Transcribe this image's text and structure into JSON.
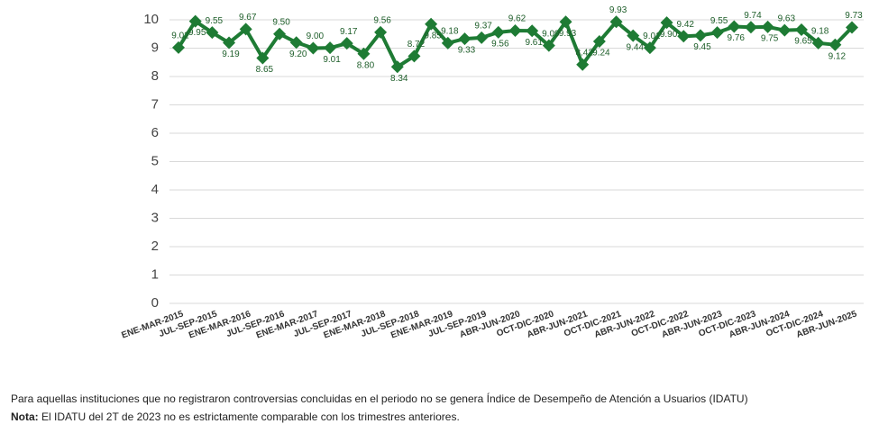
{
  "chart_data": {
    "type": "line",
    "categories": [
      "ENE-MAR-2015",
      null,
      "JUL-SEP-2015",
      null,
      "ENE-MAR-2016",
      null,
      "JUL-SEP-2016",
      null,
      "ENE-MAR-2017",
      null,
      "JUL-SEP-2017",
      null,
      "ENE-MAR-2018",
      null,
      "JUL-SEP-2018",
      null,
      "ENE-MAR-2019",
      null,
      "JUL-SEP-2019",
      null,
      "ABR-JUN-2020",
      null,
      "OCT-DIC-2020",
      null,
      "ABR-JUN-2021",
      null,
      "OCT-DIC-2021",
      null,
      "ABR-JUN-2022",
      null,
      "OCT-DIC-2022",
      null,
      "ABR-JUN-2023",
      null,
      "OCT-DIC-2023",
      null,
      "ABR-JUN-2024",
      null,
      "OCT-DIC-2024",
      null,
      "ABR-JUN-2025"
    ],
    "values": [
      9.02,
      9.95,
      9.55,
      9.19,
      9.67,
      8.65,
      9.5,
      9.2,
      9.0,
      9.01,
      9.17,
      8.8,
      9.56,
      8.34,
      8.72,
      9.85,
      9.18,
      9.33,
      9.37,
      9.56,
      9.62,
      9.61,
      9.09,
      9.93,
      8.42,
      9.24,
      9.93,
      9.44,
      9.01,
      9.9,
      9.42,
      9.45,
      9.55,
      9.76,
      9.74,
      9.75,
      9.63,
      9.65,
      9.18,
      9.12,
      9.73
    ],
    "value_labels": [
      "9.02",
      "9.95",
      "9.55",
      "9.19",
      "9.67",
      "8.65",
      "9.50",
      "9.20",
      "9.00",
      "9.01",
      "9.17",
      "8.80",
      "9.56",
      "8.34",
      "8.72",
      "9.85",
      "9.18",
      "9.33",
      "9.37",
      "9.56",
      "9.62",
      "9.61",
      "9.09",
      "9.93",
      "8.42",
      "9.24",
      "9.93",
      "9.44",
      "9.01",
      "9.90",
      "9.42",
      "9.45",
      "9.55",
      "9.76",
      "9.74",
      "9.75",
      "9.63",
      "9.65",
      "9.18",
      "9.12",
      "9.73"
    ],
    "color": "#1e7b34",
    "ylim": [
      0,
      10
    ],
    "yticks": [
      0,
      1,
      2,
      3,
      4,
      5,
      6,
      7,
      8,
      9,
      10
    ],
    "grid": true
  },
  "footer": {
    "note1": "Para aquellas instituciones que no registraron controversias concluidas en el periodo no se genera Índice de Desempeño de Atención a Usuarios (IDATU)",
    "note2_label": "Nota:",
    "note2_text": " El IDATU del 2T de 2023 no es estrictamente comparable con los trimestres anteriores."
  }
}
